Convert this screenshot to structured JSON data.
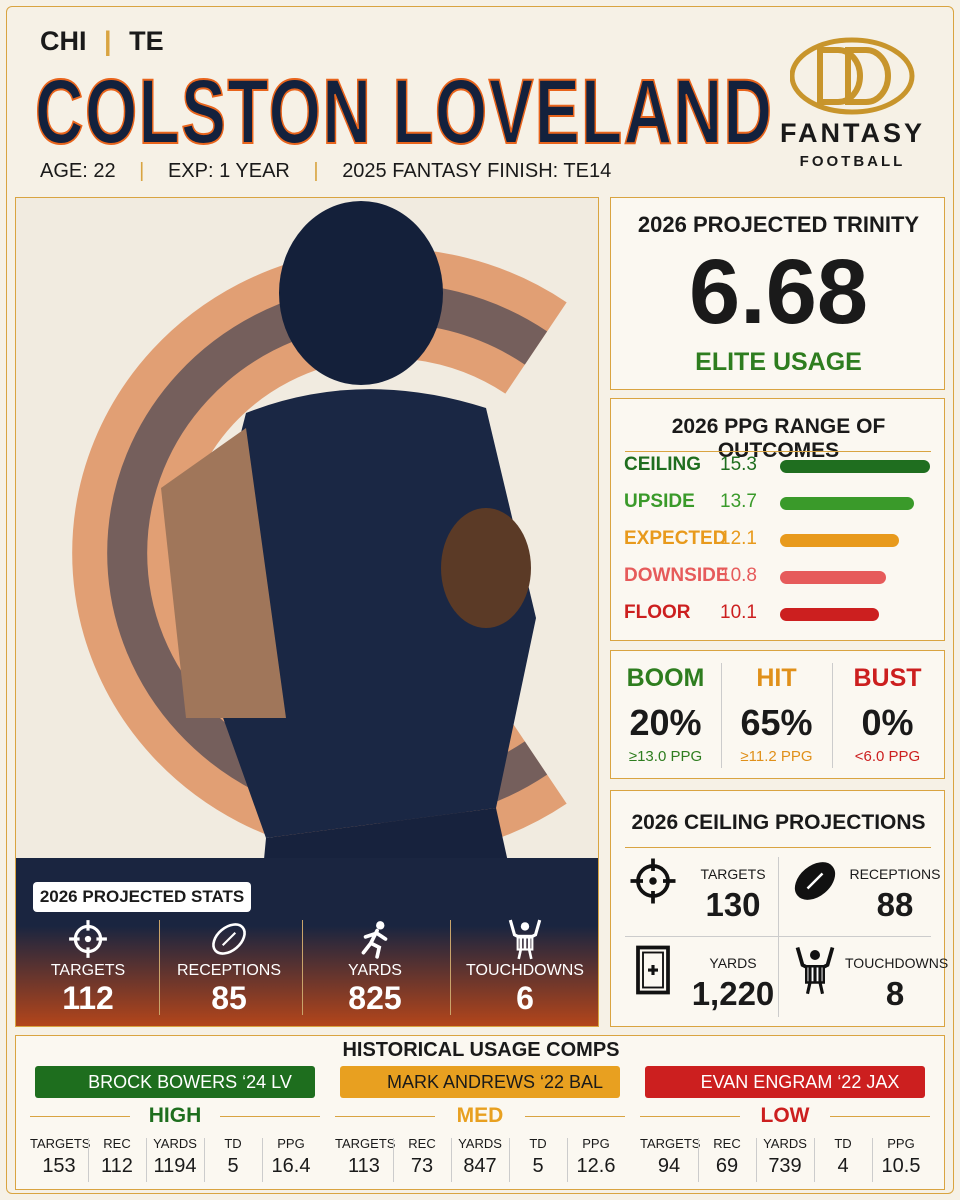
{
  "header": {
    "team": "CHI",
    "position": "TE",
    "name": "COLSTON LOVELAND",
    "age": "AGE: 22",
    "experience": "EXP: 1 YEAR",
    "finish": "2025 FANTASY FINISH: TE14"
  },
  "logo": {
    "line1": "FANTASY",
    "line2": "FOOTBALL"
  },
  "projected_stats": {
    "title": "2026 PROJECTED STATS",
    "items": [
      {
        "label": "TARGETS",
        "value": 112
      },
      {
        "label": "RECEPTIONS",
        "value": 85
      },
      {
        "label": "YARDS",
        "value": 825
      },
      {
        "label": "TOUCHDOWNS",
        "value": 6
      }
    ]
  },
  "trinity": {
    "title": "2026 PROJECTED TRINITY",
    "value": 6.68,
    "tier": "ELITE USAGE",
    "tier_color": "#2e7d1f"
  },
  "range": {
    "title": "2026 PPG RANGE OF OUTCOMES",
    "rows": [
      {
        "label": "CEILING",
        "value": 15.3,
        "color": "#1f6e1f"
      },
      {
        "label": "UPSIDE",
        "value": 13.7,
        "color": "#3a9a2a"
      },
      {
        "label": "EXPECTED",
        "value": 12.1,
        "color": "#e89a1c"
      },
      {
        "label": "DOWNSIDE",
        "value": 10.8,
        "color": "#e65b5b"
      },
      {
        "label": "FLOOR",
        "value": 10.1,
        "color": "#cc1f1f"
      }
    ]
  },
  "outcomes": [
    {
      "label": "BOOM",
      "percent": "20%",
      "threshold": "≥13.0 PPG",
      "color": "#2e7d1f"
    },
    {
      "label": "HIT",
      "percent": "65%",
      "threshold": "≥11.2 PPG",
      "color": "#e0901a"
    },
    {
      "label": "BUST",
      "percent": "0%",
      "threshold": "<6.0 PPG",
      "color": "#cc1f1f"
    }
  ],
  "ceiling": {
    "title": "2026 CEILING PROJECTIONS",
    "items": [
      {
        "label": "TARGETS",
        "value": 130
      },
      {
        "label": "RECEPTIONS",
        "value": 88
      },
      {
        "label": "YARDS",
        "value": "1,220"
      },
      {
        "label": "TOUCHDOWNS",
        "value": 8
      }
    ]
  },
  "comps": {
    "title": "HISTORICAL USAGE COMPS",
    "columns": [
      "TARGETS",
      "REC",
      "YARDS",
      "TD",
      "PPG"
    ],
    "groups": [
      {
        "player": "BROCK BOWERS ‘24 LV",
        "tier": "HIGH",
        "color": "#1e6e1e",
        "text_color": "#ffffff",
        "stats": [
          153,
          112,
          1194,
          5,
          16.4
        ]
      },
      {
        "player": "MARK ANDREWS ‘22 BAL",
        "tier": "MED",
        "color": "#e8a020",
        "text_color": "#1a1a1a",
        "stats": [
          113,
          73,
          847,
          5,
          12.6
        ]
      },
      {
        "player": "EVAN ENGRAM ‘22 JAX",
        "tier": "LOW",
        "color": "#cc1f1f",
        "text_color": "#ffffff",
        "stats": [
          94,
          69,
          739,
          4,
          10.5
        ]
      }
    ]
  }
}
